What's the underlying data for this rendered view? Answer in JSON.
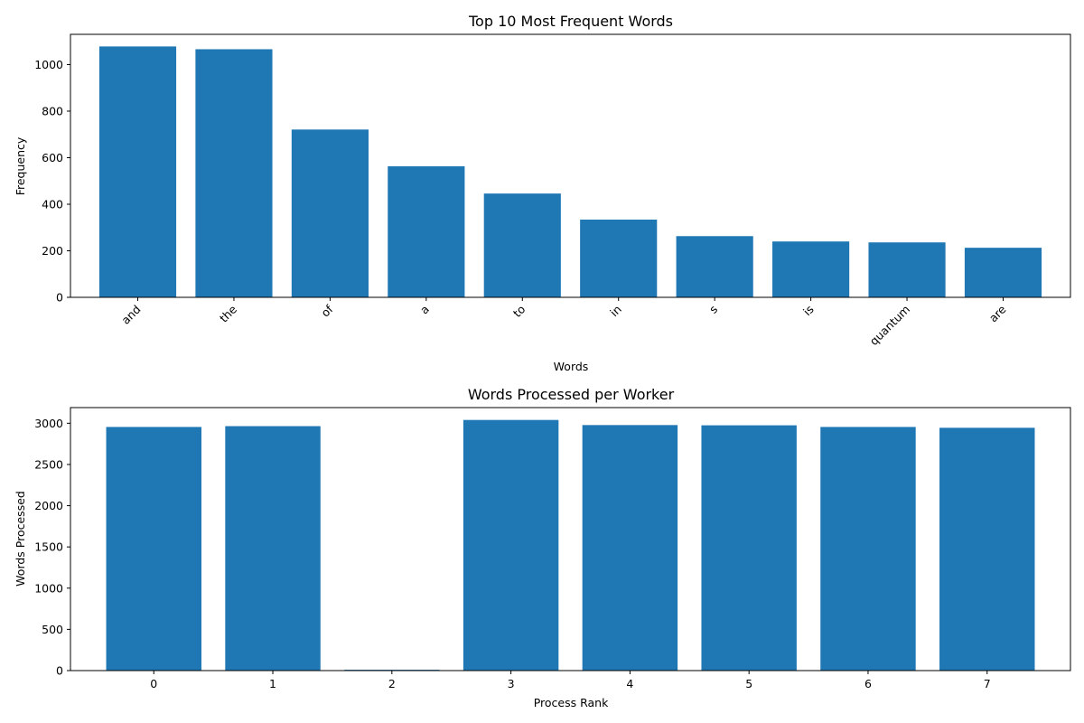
{
  "chart_data": [
    {
      "type": "bar",
      "title": "Top 10 Most Frequent Words",
      "xlabel": "Words",
      "ylabel": "Frequency",
      "categories": [
        "and",
        "the",
        "of",
        "a",
        "to",
        "in",
        "s",
        "is",
        "quantum",
        "are"
      ],
      "values": [
        1078,
        1066,
        721,
        563,
        446,
        334,
        263,
        240,
        236,
        213
      ],
      "ylim": [
        0,
        1130
      ],
      "yticks": [
        0,
        200,
        400,
        600,
        800,
        1000
      ],
      "x_tick_rotation": "45 degrees",
      "bar_color": "#1f77b4",
      "grid": false,
      "legend": "none"
    },
    {
      "type": "bar",
      "title": "Words Processed per Worker",
      "xlabel": "Process Rank",
      "ylabel": "Words Processed",
      "categories": [
        "0",
        "1",
        "2",
        "3",
        "4",
        "5",
        "6",
        "7"
      ],
      "values": [
        2955,
        2965,
        10,
        3040,
        2978,
        2975,
        2955,
        2945
      ],
      "ylim": [
        0,
        3190
      ],
      "yticks": [
        0,
        500,
        1000,
        1500,
        2000,
        2500,
        3000
      ],
      "bar_color": "#1f77b4",
      "grid": false,
      "legend": "none"
    }
  ]
}
